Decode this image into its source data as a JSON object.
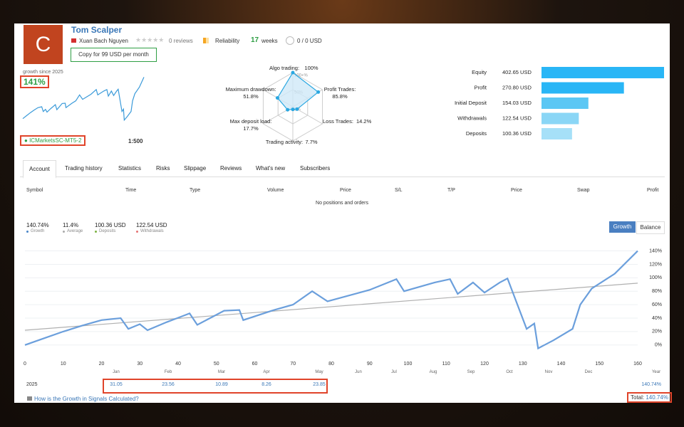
{
  "header": {
    "avatar": "C",
    "name": "Tom Scalper",
    "author": "Xuan Bach Nguyen",
    "reviews": "0 reviews",
    "reliability": "Reliability",
    "weeks_value": 17,
    "weeks_label": "weeks",
    "subscribers": "0 / 0 USD",
    "copy_button": "Copy for 99 USD per month"
  },
  "summary": {
    "growth_label": "growth since 2025",
    "growth": "141%",
    "broker": "ICMarketsSC-MT5-2",
    "leverage": "1:500"
  },
  "tabs": [
    "Account",
    "Trading history",
    "Statistics",
    "Risks",
    "Slippage",
    "Reviews",
    "What's new",
    "Subscribers"
  ],
  "table": {
    "columns": [
      "Symbol",
      "Time",
      "Type",
      "Volume",
      "Price",
      "S/L",
      "T/P",
      "Price",
      "Swap",
      "Profit"
    ],
    "empty": "No positions and orders"
  },
  "stats": [
    {
      "value": "140.74%",
      "label": "Growth",
      "color": "#4a86c8"
    },
    {
      "value": "11.4%",
      "label": "Average",
      "color": "#aaaaaa"
    },
    {
      "value": "100.36 USD",
      "label": "Deposits",
      "color": "#7cb342"
    },
    {
      "value": "122.54 USD",
      "label": "Withdrawals",
      "color": "#e57373"
    }
  ],
  "toggle": [
    "Growth",
    "Balance"
  ],
  "year_row": {
    "year": "2025",
    "months": [
      "Jan",
      "Feb",
      "Mar",
      "Apr",
      "May",
      "Jun",
      "Jul",
      "Aug",
      "Sep",
      "Oct",
      "Nov",
      "Dec"
    ],
    "year_column": "Year",
    "values": [
      31.05,
      23.56,
      10.89,
      8.26,
      23.85,
      null,
      null,
      null,
      null,
      null,
      null,
      null
    ],
    "ytd": "140.74%",
    "total_label": "Total:",
    "total": "140.74%"
  },
  "footer_link": "How is the Growth in Signals Calculated?",
  "chart_data": [
    {
      "type": "radar",
      "categories": [
        "Algo trading:",
        "Profit Trades:",
        "Loss Trades:",
        "Trading activity:",
        "Max deposit load:",
        "Maximum drawdown:"
      ],
      "values": [
        100,
        85.8,
        14.2,
        7.7,
        17.7,
        51.8
      ],
      "value_labels": [
        "100%",
        "85.8%",
        "14.2%",
        "7.7%",
        "17.7%",
        "51.8%"
      ],
      "rticks": [
        {
          "value": 100,
          "label": "100+%"
        },
        {
          "value": 50,
          "label": "50%"
        },
        {
          "value": 0,
          "label": "0%"
        }
      ],
      "color": "#29a7e1"
    },
    {
      "type": "hbar",
      "categories": [
        "Equity",
        "Profit",
        "Initial Deposit",
        "Withdrawals",
        "Deposits"
      ],
      "values": [
        402.65,
        270.8,
        154.03,
        122.54,
        100.36
      ],
      "value_labels": [
        "402.65 USD",
        "270.80 USD",
        "154.03 USD",
        "122.54 USD",
        "100.36 USD"
      ],
      "colors": [
        "#29b6f6",
        "#29b6f6",
        "#5cc7f4",
        "#8ad6f6",
        "#a6e0f8"
      ]
    },
    {
      "type": "line",
      "x": [
        0,
        5,
        10,
        15,
        20,
        25,
        27,
        30,
        32,
        37,
        43,
        45,
        52,
        56,
        57,
        65,
        70,
        75,
        79,
        90,
        97,
        99,
        107,
        111,
        113,
        117,
        120,
        124,
        126,
        131,
        133,
        134,
        138,
        143,
        145,
        148,
        154,
        160
      ],
      "series": [
        {
          "color": "#6b9fdc",
          "values": [
            0,
            10,
            20,
            29,
            37,
            40,
            24,
            31,
            22,
            34,
            47,
            30,
            51,
            52,
            37,
            52,
            60,
            80,
            65,
            82,
            98,
            80,
            93,
            98,
            76,
            93,
            78,
            93,
            99,
            24,
            32,
            -5,
            7,
            24,
            60,
            84,
            106,
            140
          ]
        }
      ],
      "trendline": {
        "x": [
          0,
          160
        ],
        "values": [
          22,
          92
        ],
        "color": "#b0b0b0"
      },
      "xlim": [
        0,
        160
      ],
      "xticks": [
        0,
        10,
        20,
        30,
        40,
        50,
        60,
        70,
        80,
        90,
        100,
        110,
        120,
        130,
        140,
        150,
        160
      ],
      "ylim": [
        -32,
        148
      ],
      "yticks": [
        {
          "value": 0,
          "label": "0%"
        },
        {
          "value": 20,
          "label": "20%"
        },
        {
          "value": 40,
          "label": "40%"
        },
        {
          "value": 60,
          "label": "60%"
        },
        {
          "value": 80,
          "label": "80%"
        },
        {
          "value": 100,
          "label": "100%"
        },
        {
          "value": 120,
          "label": "120%"
        },
        {
          "value": 140,
          "label": "140%"
        }
      ],
      "grid": true
    }
  ]
}
